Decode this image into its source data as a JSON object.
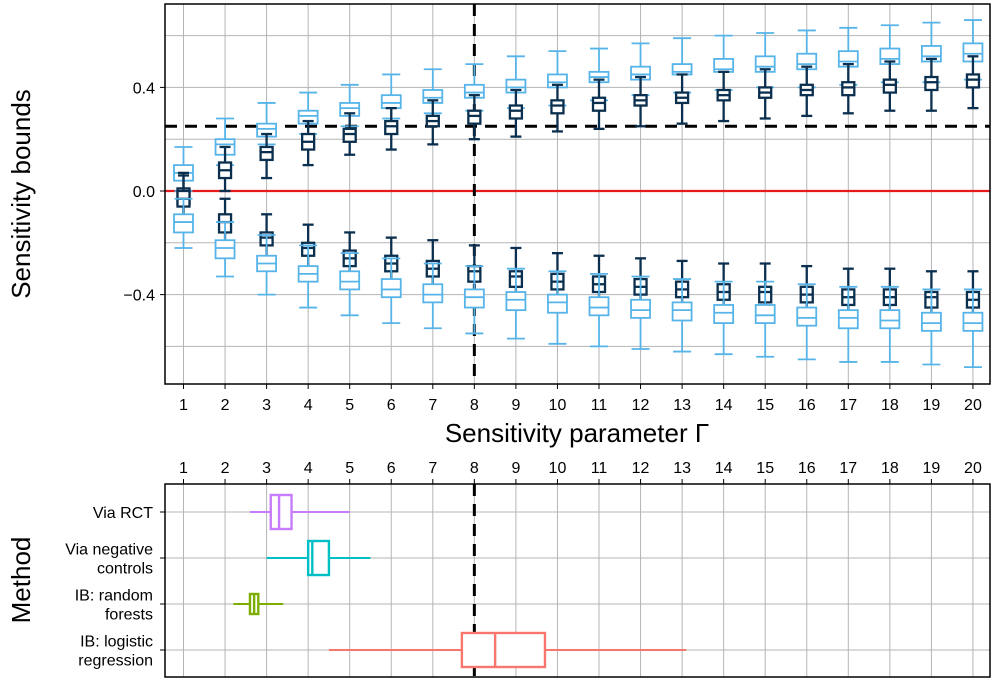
{
  "chart_data": [
    {
      "type": "boxplot",
      "panel": "top",
      "xlabel": "Sensitivity parameter Γ",
      "ylabel": "Sensitivity bounds",
      "x_ticks": [
        "1",
        "2",
        "3",
        "4",
        "5",
        "6",
        "7",
        "8",
        "9",
        "10",
        "11",
        "12",
        "13",
        "14",
        "15",
        "16",
        "17",
        "18",
        "19",
        "20"
      ],
      "y_ticks": [
        {
          "value": 0.4,
          "label": "0.4"
        },
        {
          "value": 0.0,
          "label": "0.0"
        },
        {
          "value": -0.4,
          "label": "−0.4"
        }
      ],
      "ylim": [
        -0.74,
        0.73
      ],
      "reference_hline_dashed": 0.25,
      "reference_hline_red": 0.0,
      "reference_vline_dashed": 8,
      "colors": {
        "light": "#56B4E9",
        "dark": "#0B2F4E",
        "red": "#E41A1C"
      },
      "series": [
        {
          "name": "light-upper",
          "boxes": [
            {
              "x": 1,
              "min": 0.0,
              "q1": 0.04,
              "median": 0.07,
              "q3": 0.1,
              "max": 0.17
            },
            {
              "x": 2,
              "min": 0.1,
              "q1": 0.14,
              "median": 0.18,
              "q3": 0.2,
              "max": 0.28
            },
            {
              "x": 3,
              "min": 0.18,
              "q1": 0.21,
              "median": 0.24,
              "q3": 0.26,
              "max": 0.34
            },
            {
              "x": 4,
              "min": 0.22,
              "q1": 0.26,
              "median": 0.29,
              "q3": 0.31,
              "max": 0.38
            },
            {
              "x": 5,
              "min": 0.25,
              "q1": 0.29,
              "median": 0.32,
              "q3": 0.34,
              "max": 0.41
            },
            {
              "x": 6,
              "min": 0.28,
              "q1": 0.32,
              "median": 0.34,
              "q3": 0.37,
              "max": 0.45
            },
            {
              "x": 7,
              "min": 0.3,
              "q1": 0.34,
              "median": 0.36,
              "q3": 0.39,
              "max": 0.47
            },
            {
              "x": 8,
              "min": 0.31,
              "q1": 0.36,
              "median": 0.38,
              "q3": 0.41,
              "max": 0.49
            },
            {
              "x": 9,
              "min": 0.32,
              "q1": 0.38,
              "median": 0.4,
              "q3": 0.43,
              "max": 0.52
            },
            {
              "x": 10,
              "min": 0.33,
              "q1": 0.4,
              "median": 0.42,
              "q3": 0.45,
              "max": 0.54
            },
            {
              "x": 11,
              "min": 0.35,
              "q1": 0.42,
              "median": 0.44,
              "q3": 0.46,
              "max": 0.55
            },
            {
              "x": 12,
              "min": 0.37,
              "q1": 0.43,
              "median": 0.45,
              "q3": 0.48,
              "max": 0.57
            },
            {
              "x": 13,
              "min": 0.38,
              "q1": 0.45,
              "median": 0.46,
              "q3": 0.49,
              "max": 0.59
            },
            {
              "x": 14,
              "min": 0.39,
              "q1": 0.46,
              "median": 0.47,
              "q3": 0.51,
              "max": 0.6
            },
            {
              "x": 15,
              "min": 0.4,
              "q1": 0.46,
              "median": 0.48,
              "q3": 0.52,
              "max": 0.61
            },
            {
              "x": 16,
              "min": 0.4,
              "q1": 0.47,
              "median": 0.49,
              "q3": 0.53,
              "max": 0.62
            },
            {
              "x": 17,
              "min": 0.41,
              "q1": 0.48,
              "median": 0.5,
              "q3": 0.54,
              "max": 0.63
            },
            {
              "x": 18,
              "min": 0.42,
              "q1": 0.49,
              "median": 0.51,
              "q3": 0.55,
              "max": 0.64
            },
            {
              "x": 19,
              "min": 0.42,
              "q1": 0.5,
              "median": 0.52,
              "q3": 0.56,
              "max": 0.65
            },
            {
              "x": 20,
              "min": 0.43,
              "q1": 0.5,
              "median": 0.53,
              "q3": 0.57,
              "max": 0.66
            }
          ]
        },
        {
          "name": "dark-upper",
          "boxes": [
            {
              "x": 1,
              "min": -0.1,
              "q1": -0.05,
              "median": -0.02,
              "q3": 0.01,
              "max": 0.07
            },
            {
              "x": 2,
              "min": 0.0,
              "q1": 0.05,
              "median": 0.08,
              "q3": 0.11,
              "max": 0.17
            },
            {
              "x": 3,
              "min": 0.05,
              "q1": 0.12,
              "median": 0.15,
              "q3": 0.17,
              "max": 0.22
            },
            {
              "x": 4,
              "min": 0.1,
              "q1": 0.16,
              "median": 0.19,
              "q3": 0.22,
              "max": 0.27
            },
            {
              "x": 5,
              "min": 0.14,
              "q1": 0.19,
              "median": 0.22,
              "q3": 0.24,
              "max": 0.3
            },
            {
              "x": 6,
              "min": 0.16,
              "q1": 0.22,
              "median": 0.25,
              "q3": 0.27,
              "max": 0.32
            },
            {
              "x": 7,
              "min": 0.18,
              "q1": 0.25,
              "median": 0.27,
              "q3": 0.29,
              "max": 0.35
            },
            {
              "x": 8,
              "min": 0.2,
              "q1": 0.26,
              "median": 0.29,
              "q3": 0.31,
              "max": 0.37
            },
            {
              "x": 9,
              "min": 0.21,
              "q1": 0.28,
              "median": 0.31,
              "q3": 0.33,
              "max": 0.39
            },
            {
              "x": 10,
              "min": 0.23,
              "q1": 0.3,
              "median": 0.33,
              "q3": 0.35,
              "max": 0.41
            },
            {
              "x": 11,
              "min": 0.24,
              "q1": 0.31,
              "median": 0.34,
              "q3": 0.36,
              "max": 0.43
            },
            {
              "x": 12,
              "min": 0.25,
              "q1": 0.33,
              "median": 0.35,
              "q3": 0.37,
              "max": 0.44
            },
            {
              "x": 13,
              "min": 0.26,
              "q1": 0.34,
              "median": 0.36,
              "q3": 0.38,
              "max": 0.45
            },
            {
              "x": 14,
              "min": 0.27,
              "q1": 0.35,
              "median": 0.37,
              "q3": 0.39,
              "max": 0.46
            },
            {
              "x": 15,
              "min": 0.28,
              "q1": 0.36,
              "median": 0.38,
              "q3": 0.4,
              "max": 0.47
            },
            {
              "x": 16,
              "min": 0.29,
              "q1": 0.37,
              "median": 0.39,
              "q3": 0.41,
              "max": 0.48
            },
            {
              "x": 17,
              "min": 0.3,
              "q1": 0.37,
              "median": 0.4,
              "q3": 0.42,
              "max": 0.49
            },
            {
              "x": 18,
              "min": 0.31,
              "q1": 0.38,
              "median": 0.41,
              "q3": 0.43,
              "max": 0.5
            },
            {
              "x": 19,
              "min": 0.31,
              "q1": 0.39,
              "median": 0.42,
              "q3": 0.44,
              "max": 0.51
            },
            {
              "x": 20,
              "min": 0.32,
              "q1": 0.4,
              "median": 0.43,
              "q3": 0.45,
              "max": 0.52
            }
          ]
        },
        {
          "name": "dark-lower",
          "boxes": [
            {
              "x": 1,
              "min": -0.11,
              "q1": -0.06,
              "median": -0.03,
              "q3": 0.0,
              "max": 0.06
            },
            {
              "x": 2,
              "min": -0.21,
              "q1": -0.16,
              "median": -0.12,
              "q3": -0.09,
              "max": -0.03
            },
            {
              "x": 3,
              "min": -0.26,
              "q1": -0.21,
              "median": -0.18,
              "q3": -0.16,
              "max": -0.09
            },
            {
              "x": 4,
              "min": -0.31,
              "q1": -0.25,
              "median": -0.22,
              "q3": -0.2,
              "max": -0.13
            },
            {
              "x": 5,
              "min": -0.34,
              "q1": -0.29,
              "median": -0.26,
              "q3": -0.23,
              "max": -0.16
            },
            {
              "x": 6,
              "min": -0.36,
              "q1": -0.31,
              "median": -0.28,
              "q3": -0.25,
              "max": -0.18
            },
            {
              "x": 7,
              "min": -0.38,
              "q1": -0.33,
              "median": -0.3,
              "q3": -0.27,
              "max": -0.19
            },
            {
              "x": 8,
              "min": -0.4,
              "q1": -0.35,
              "median": -0.31,
              "q3": -0.29,
              "max": -0.21
            },
            {
              "x": 9,
              "min": -0.42,
              "q1": -0.37,
              "median": -0.33,
              "q3": -0.31,
              "max": -0.22
            },
            {
              "x": 10,
              "min": -0.43,
              "q1": -0.38,
              "median": -0.35,
              "q3": -0.32,
              "max": -0.24
            },
            {
              "x": 11,
              "min": -0.45,
              "q1": -0.39,
              "median": -0.36,
              "q3": -0.33,
              "max": -0.25
            },
            {
              "x": 12,
              "min": -0.46,
              "q1": -0.4,
              "median": -0.37,
              "q3": -0.34,
              "max": -0.26
            },
            {
              "x": 13,
              "min": -0.47,
              "q1": -0.41,
              "median": -0.38,
              "q3": -0.35,
              "max": -0.27
            },
            {
              "x": 14,
              "min": -0.48,
              "q1": -0.42,
              "median": -0.39,
              "q3": -0.36,
              "max": -0.28
            },
            {
              "x": 15,
              "min": -0.49,
              "q1": -0.43,
              "median": -0.39,
              "q3": -0.37,
              "max": -0.28
            },
            {
              "x": 16,
              "min": -0.5,
              "q1": -0.43,
              "median": -0.4,
              "q3": -0.37,
              "max": -0.29
            },
            {
              "x": 17,
              "min": -0.5,
              "q1": -0.44,
              "median": -0.41,
              "q3": -0.38,
              "max": -0.3
            },
            {
              "x": 18,
              "min": -0.51,
              "q1": -0.44,
              "median": -0.41,
              "q3": -0.38,
              "max": -0.3
            },
            {
              "x": 19,
              "min": -0.51,
              "q1": -0.45,
              "median": -0.41,
              "q3": -0.39,
              "max": -0.31
            },
            {
              "x": 20,
              "min": -0.52,
              "q1": -0.45,
              "median": -0.42,
              "q3": -0.39,
              "max": -0.31
            }
          ]
        },
        {
          "name": "light-lower",
          "boxes": [
            {
              "x": 1,
              "min": -0.22,
              "q1": -0.16,
              "median": -0.12,
              "q3": -0.09,
              "max": -0.03
            },
            {
              "x": 2,
              "min": -0.33,
              "q1": -0.26,
              "median": -0.22,
              "q3": -0.19,
              "max": -0.12
            },
            {
              "x": 3,
              "min": -0.4,
              "q1": -0.31,
              "median": -0.28,
              "q3": -0.25,
              "max": -0.17
            },
            {
              "x": 4,
              "min": -0.45,
              "q1": -0.35,
              "median": -0.32,
              "q3": -0.29,
              "max": -0.21
            },
            {
              "x": 5,
              "min": -0.48,
              "q1": -0.38,
              "median": -0.35,
              "q3": -0.31,
              "max": -0.24
            },
            {
              "x": 6,
              "min": -0.51,
              "q1": -0.41,
              "median": -0.38,
              "q3": -0.34,
              "max": -0.26
            },
            {
              "x": 7,
              "min": -0.53,
              "q1": -0.43,
              "median": -0.4,
              "q3": -0.36,
              "max": -0.28
            },
            {
              "x": 8,
              "min": -0.55,
              "q1": -0.45,
              "median": -0.41,
              "q3": -0.38,
              "max": -0.29
            },
            {
              "x": 9,
              "min": -0.57,
              "q1": -0.46,
              "median": -0.42,
              "q3": -0.39,
              "max": -0.3
            },
            {
              "x": 10,
              "min": -0.59,
              "q1": -0.47,
              "median": -0.43,
              "q3": -0.4,
              "max": -0.31
            },
            {
              "x": 11,
              "min": -0.6,
              "q1": -0.48,
              "median": -0.45,
              "q3": -0.41,
              "max": -0.32
            },
            {
              "x": 12,
              "min": -0.61,
              "q1": -0.49,
              "median": -0.46,
              "q3": -0.42,
              "max": -0.33
            },
            {
              "x": 13,
              "min": -0.62,
              "q1": -0.5,
              "median": -0.46,
              "q3": -0.43,
              "max": -0.34
            },
            {
              "x": 14,
              "min": -0.63,
              "q1": -0.51,
              "median": -0.47,
              "q3": -0.44,
              "max": -0.35
            },
            {
              "x": 15,
              "min": -0.64,
              "q1": -0.51,
              "median": -0.48,
              "q3": -0.44,
              "max": -0.35
            },
            {
              "x": 16,
              "min": -0.65,
              "q1": -0.52,
              "median": -0.49,
              "q3": -0.45,
              "max": -0.36
            },
            {
              "x": 17,
              "min": -0.66,
              "q1": -0.53,
              "median": -0.49,
              "q3": -0.46,
              "max": -0.37
            },
            {
              "x": 18,
              "min": -0.66,
              "q1": -0.53,
              "median": -0.5,
              "q3": -0.46,
              "max": -0.37
            },
            {
              "x": 19,
              "min": -0.67,
              "q1": -0.54,
              "median": -0.51,
              "q3": -0.47,
              "max": -0.38
            },
            {
              "x": 20,
              "min": -0.68,
              "q1": -0.54,
              "median": -0.51,
              "q3": -0.47,
              "max": -0.38
            }
          ]
        }
      ]
    },
    {
      "type": "boxplot-horizontal",
      "panel": "bottom",
      "ylabel": "Method",
      "x_ticks": [
        "1",
        "2",
        "3",
        "4",
        "5",
        "6",
        "7",
        "8",
        "9",
        "10",
        "11",
        "12",
        "13",
        "14",
        "15",
        "16",
        "17",
        "18",
        "19",
        "20"
      ],
      "reference_vline_dashed": 8,
      "methods": [
        {
          "label_lines": [
            "Via RCT"
          ],
          "color": "#C77CFF",
          "min": 2.6,
          "q1": 3.1,
          "median": 3.3,
          "q3": 3.6,
          "max": 5.0
        },
        {
          "label_lines": [
            "Via negative",
            "controls"
          ],
          "color": "#00BFC4",
          "min": 3.0,
          "q1": 4.0,
          "median": 4.1,
          "q3": 4.5,
          "max": 5.5
        },
        {
          "label_lines": [
            "IB: random",
            "forests"
          ],
          "color": "#7CAE00",
          "min": 2.2,
          "q1": 2.6,
          "median": 2.7,
          "q3": 2.8,
          "max": 3.4
        },
        {
          "label_lines": [
            "IB: logistic",
            "regression"
          ],
          "color": "#F8766D",
          "min": 4.5,
          "q1": 7.7,
          "median": 8.5,
          "q3": 9.7,
          "max": 13.1
        }
      ]
    }
  ]
}
